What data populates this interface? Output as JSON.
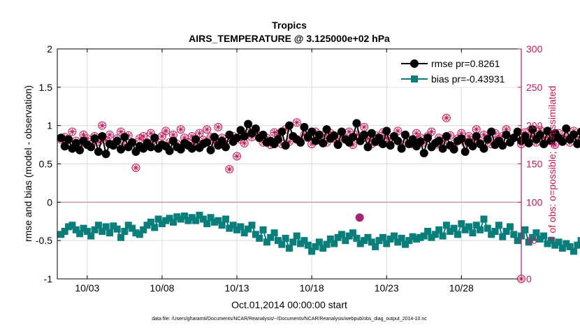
{
  "chart_data": {
    "type": "line",
    "title": "Tropics",
    "subtitle": "AIRS_TEMPERATURE @ 3.125000e+02 hPa",
    "xlabel": "Oct.01,2014 00:00:00 start",
    "ylabel_left": "rmse and bias (model - observation)",
    "ylabel_right": "# of obs: o=possible; ∗=assimilated",
    "footnote": "data file: /Users/gharamti/Documents/NCAR/Reanalysis/~/Documents/NCAR/Reanalysis/webpub/obs_diag_output_2014-10.nc",
    "xlim": [
      1,
      32
    ],
    "ylim_left": [
      -1,
      2
    ],
    "ylim_right": [
      0,
      300
    ],
    "x_ticks": [
      {
        "value": 3,
        "label": "10/03"
      },
      {
        "value": 8,
        "label": "10/08"
      },
      {
        "value": 13,
        "label": "10/13"
      },
      {
        "value": 18,
        "label": "10/18"
      },
      {
        "value": 23,
        "label": "10/23"
      },
      {
        "value": 28,
        "label": "10/28"
      }
    ],
    "y_ticks_left": [
      {
        "value": -1,
        "label": "-1"
      },
      {
        "value": -0.5,
        "label": "-0.5"
      },
      {
        "value": 0,
        "label": "0"
      },
      {
        "value": 0.5,
        "label": "0.5"
      },
      {
        "value": 1,
        "label": "1"
      },
      {
        "value": 1.5,
        "label": "1.5"
      },
      {
        "value": 2,
        "label": "2"
      }
    ],
    "y_ticks_right": [
      {
        "value": 0,
        "label": "0"
      },
      {
        "value": 50,
        "label": "50"
      },
      {
        "value": 100,
        "label": "100"
      },
      {
        "value": 150,
        "label": "150"
      },
      {
        "value": 200,
        "label": "200"
      },
      {
        "value": 250,
        "label": "250"
      },
      {
        "value": 300,
        "label": "300"
      }
    ],
    "grid": true,
    "legend_position": "top-right",
    "series": [
      {
        "name": "rmse pr=0.8261",
        "axis": "left",
        "color": "#000000",
        "marker": "circle",
        "x_start": 1.25,
        "x_step": 0.25,
        "values": [
          0.84,
          0.73,
          0.82,
          0.7,
          0.77,
          0.68,
          0.8,
          0.75,
          0.72,
          0.83,
          0.66,
          0.86,
          0.63,
          0.76,
          0.74,
          0.8,
          0.69,
          0.85,
          0.72,
          0.78,
          0.66,
          0.73,
          0.7,
          0.77,
          0.72,
          0.84,
          0.7,
          0.75,
          0.73,
          0.67,
          0.8,
          0.72,
          0.69,
          0.77,
          0.74,
          0.7,
          0.82,
          0.71,
          0.76,
          0.78,
          0.68,
          0.85,
          0.74,
          0.8,
          0.72,
          0.88,
          0.79,
          0.84,
          0.94,
          0.86,
          1.02,
          0.9,
          0.96,
          0.84,
          0.88,
          0.78,
          0.8,
          0.76,
          0.82,
          0.92,
          0.74,
          1.0,
          0.86,
          0.82,
          0.78,
          0.98,
          0.85,
          0.92,
          0.8,
          0.88,
          0.77,
          0.95,
          0.83,
          0.87,
          0.75,
          0.92,
          0.82,
          0.78,
          0.85,
          1.03,
          0.8,
          0.88,
          0.72,
          0.9,
          0.79,
          0.84,
          0.76,
          0.93,
          0.74,
          0.86,
          0.8,
          0.7,
          0.88,
          0.76,
          0.82,
          0.73,
          0.79,
          0.64,
          0.84,
          0.72,
          0.77,
          0.8,
          0.7,
          0.86,
          0.74,
          0.69,
          0.8,
          0.83,
          0.66,
          0.78,
          0.73,
          0.86,
          0.76,
          0.7,
          0.82,
          0.92,
          0.75,
          0.8,
          0.74,
          0.88,
          0.78,
          0.84,
          0.92,
          0.8,
          0.86,
          0.77,
          0.95,
          0.82,
          0.88,
          0.76,
          0.93,
          0.8,
          0.9,
          0.84,
          0.79,
          0.96,
          0.82,
          0.88,
          0.76,
          0.92,
          0.84,
          1.03,
          0.8,
          0.9,
          0.86,
          0.78,
          0.94,
          0.83,
          0.88,
          0.74,
          0.92,
          0.8,
          0.86,
          0.78,
          0.84,
          0.9,
          0.76,
          0.88,
          0.82,
          0.94,
          0.8,
          0.86,
          0.92,
          0.78,
          0.84,
          0.96,
          0.9,
          0.84,
          0.8,
          0.97
        ]
      },
      {
        "name": "bias pr=-0.43931",
        "axis": "left",
        "color": "#0a7e7a",
        "marker": "square",
        "x_start": 1.25,
        "x_step": 0.25,
        "values": [
          -0.42,
          -0.38,
          -0.32,
          -0.3,
          -0.36,
          -0.41,
          -0.34,
          -0.38,
          -0.44,
          -0.36,
          -0.3,
          -0.38,
          -0.32,
          -0.4,
          -0.31,
          -0.35,
          -0.46,
          -0.38,
          -0.3,
          -0.34,
          -0.4,
          -0.42,
          -0.36,
          -0.3,
          -0.26,
          -0.33,
          -0.22,
          -0.28,
          -0.24,
          -0.21,
          -0.26,
          -0.19,
          -0.22,
          -0.18,
          -0.24,
          -0.2,
          -0.24,
          -0.17,
          -0.22,
          -0.28,
          -0.2,
          -0.26,
          -0.24,
          -0.3,
          -0.22,
          -0.34,
          -0.3,
          -0.36,
          -0.32,
          -0.4,
          -0.35,
          -0.3,
          -0.42,
          -0.47,
          -0.36,
          -0.52,
          -0.46,
          -0.4,
          -0.5,
          -0.55,
          -0.47,
          -0.6,
          -0.52,
          -0.44,
          -0.54,
          -0.5,
          -0.56,
          -0.64,
          -0.58,
          -0.52,
          -0.6,
          -0.55,
          -0.48,
          -0.54,
          -0.46,
          -0.42,
          -0.5,
          -0.44,
          -0.4,
          -0.47,
          -0.54,
          -0.5,
          -0.46,
          -0.52,
          -0.58,
          -0.5,
          -0.46,
          -0.54,
          -0.48,
          -0.44,
          -0.52,
          -0.47,
          -0.55,
          -0.5,
          -0.45,
          -0.48,
          -0.46,
          -0.44,
          -0.38,
          -0.46,
          -0.42,
          -0.36,
          -0.44,
          -0.3,
          -0.38,
          -0.34,
          -0.42,
          -0.28,
          -0.36,
          -0.32,
          -0.4,
          -0.3,
          -0.36,
          -0.22,
          -0.34,
          -0.42,
          -0.38,
          -0.3,
          -0.45,
          -0.38,
          -0.32,
          -0.42,
          -0.5,
          -0.44,
          -0.36,
          -0.52,
          -0.46,
          -0.4,
          -0.48,
          -0.44,
          -0.54,
          -0.5,
          -0.56,
          -0.52,
          -0.6,
          -0.54,
          -0.58,
          -0.64,
          -0.56,
          -0.5,
          -0.58,
          -0.54,
          -0.48,
          -0.56,
          -0.52,
          -0.46,
          -0.54,
          -0.5,
          -0.44,
          -0.52,
          -0.48,
          -0.56,
          -0.42,
          -0.5,
          -0.46,
          -0.54,
          -0.48,
          -0.4,
          -0.47,
          -0.52,
          -0.44,
          -0.5,
          -0.46,
          -0.54,
          -0.42,
          -0.5,
          -0.46,
          -0.56,
          -0.44,
          -0.5,
          -0.42,
          -0.52,
          -0.48,
          -0.44,
          -0.52,
          -0.58
        ]
      },
      {
        "name": "obs possible",
        "axis": "right",
        "color": "#c2185b",
        "marker": "circle-open",
        "x_start": 1.25,
        "x_step": 0.25,
        "values": [
          182,
          185,
          178,
          192,
          180,
          176,
          188,
          183,
          175,
          186,
          179,
          200,
          181,
          188,
          176,
          183,
          192,
          174,
          187,
          178,
          145,
          183,
          186,
          178,
          190,
          182,
          174,
          186,
          193,
          178,
          188,
          176,
          195,
          184,
          178,
          186,
          174,
          190,
          181,
          195,
          185,
          178,
          198,
          184,
          179,
          143,
          186,
          160,
          182,
          177,
          190,
          185,
          194,
          186,
          178,
          184,
          175,
          191,
          188,
          176,
          195,
          179,
          186,
          204,
          178,
          188,
          184,
          176,
          192,
          181,
          187,
          178,
          190,
          183,
          176,
          186,
          182,
          192,
          175,
          188,
          180,
          198,
          183,
          176,
          187,
          179,
          191,
          184,
          178,
          186,
          193,
          175,
          188,
          181,
          176,
          190,
          184,
          178,
          186,
          192,
          175,
          184,
          180,
          210,
          187,
          176,
          183,
          190,
          178,
          186,
          181,
          195,
          177,
          188,
          183,
          176,
          190,
          182,
          186,
          195,
          178,
          184,
          188,
          176,
          191,
          182,
          186,
          178,
          194,
          184,
          180,
          187,
          175,
          190,
          182,
          185,
          178,
          193,
          181,
          188,
          176,
          184,
          190,
          178,
          186,
          210,
          182,
          177,
          188,
          183,
          176,
          190,
          184,
          178,
          186,
          192,
          180,
          185,
          176,
          188,
          182,
          190,
          179,
          195,
          184,
          178,
          186,
          190,
          180,
          184
        ]
      },
      {
        "name": "obs assimilated",
        "axis": "right",
        "color": "#c2185b",
        "marker": "asterisk",
        "x_start": 1.25,
        "x_step": 0.25,
        "values": [
          182,
          185,
          178,
          192,
          180,
          176,
          188,
          183,
          175,
          186,
          179,
          200,
          181,
          188,
          176,
          183,
          192,
          174,
          187,
          178,
          145,
          183,
          186,
          178,
          190,
          182,
          174,
          186,
          193,
          178,
          188,
          176,
          195,
          184,
          178,
          186,
          174,
          190,
          181,
          195,
          185,
          178,
          198,
          184,
          179,
          143,
          186,
          160,
          182,
          177,
          190,
          185,
          194,
          186,
          178,
          184,
          175,
          191,
          188,
          176,
          195,
          179,
          186,
          204,
          178,
          188,
          184,
          176,
          192,
          181,
          187,
          178,
          190,
          183,
          176,
          186,
          182,
          192,
          175,
          188,
          180,
          198,
          183,
          176,
          187,
          179,
          191,
          184,
          178,
          186,
          193,
          175,
          188,
          181,
          176,
          190,
          184,
          178,
          186,
          192,
          175,
          184,
          180,
          210,
          187,
          176,
          183,
          190,
          178,
          186,
          181,
          195,
          177,
          188,
          183,
          176,
          190,
          182,
          186,
          195,
          178,
          184,
          188,
          176,
          191,
          182,
          186,
          178,
          194,
          184,
          180,
          187,
          175,
          190,
          182,
          185,
          178,
          193,
          181,
          188,
          176,
          184,
          190,
          178,
          186,
          210,
          182,
          177,
          188,
          183,
          176,
          190,
          184,
          178,
          186,
          192,
          180,
          185,
          176,
          188,
          182,
          190,
          179,
          195,
          184,
          178,
          186,
          190,
          180,
          184
        ]
      }
    ],
    "annotations": [
      {
        "label": "possible/assimilated count marker",
        "x": 21.2,
        "y_right": 80
      },
      {
        "label": "endpoint marker",
        "x": 32,
        "y_right": 0
      }
    ]
  },
  "colors": {
    "axis_right": "#c2185b",
    "grid": "#dcdcdc",
    "zero_line": "#c89aa6"
  }
}
